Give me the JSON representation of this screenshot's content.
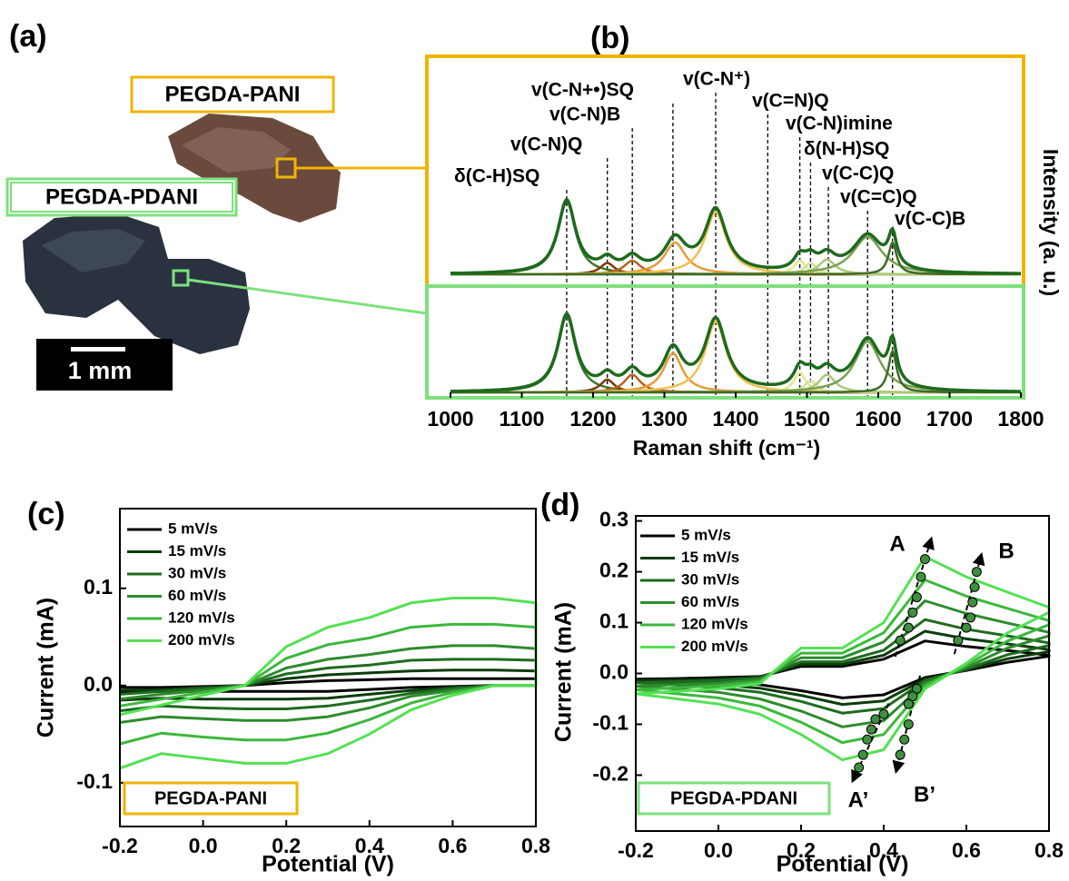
{
  "panel_labels": [
    "(a)",
    "(b)",
    "(c)",
    "(d)"
  ],
  "photo": {
    "sample_labels": [
      "PEGDA-PANI",
      "PEGDA-PDANI"
    ],
    "scale_bar": "1 mm"
  },
  "chart_data": [
    {
      "type": "raman",
      "x_label": "Raman shift (cm⁻¹)",
      "y_label": "Intensity (a. u.)",
      "xlim": [
        1000,
        1800
      ],
      "xticks": [
        1000,
        1100,
        1200,
        1300,
        1400,
        1500,
        1600,
        1700,
        1800
      ],
      "ylim": [
        0,
        1
      ],
      "annotations": [
        {
          "label": "δ(C-H)SQ",
          "x": 1163
        },
        {
          "label": "v(C-N)Q",
          "x": 1220
        },
        {
          "label": "v(C-N+•)SQ",
          "x": 1312
        },
        {
          "label": "v(C-N)B",
          "x": 1255
        },
        {
          "label": "v(C-N⁺)",
          "x": 1372
        },
        {
          "label": "v(C=N)Q",
          "x": 1445
        },
        {
          "label": "v(C-N)imine",
          "x": 1490
        },
        {
          "label": "δ(N-H)SQ",
          "x": 1505
        },
        {
          "label": "v(C-C)Q",
          "x": 1530
        },
        {
          "label": "v(C=C)Q",
          "x": 1585
        },
        {
          "label": "v(C-C)B",
          "x": 1620
        }
      ],
      "fit_color": "#1e6a1e",
      "spectra": [
        {
          "frame_color": "#f0b400",
          "peaks": [
            {
              "center": 1163,
              "height": 0.64,
              "width": 15,
              "color": "#3a7a2a"
            },
            {
              "center": 1220,
              "height": 0.1,
              "width": 12,
              "color": "#7a3a10"
            },
            {
              "center": 1255,
              "height": 0.12,
              "width": 14,
              "color": "#b5651d"
            },
            {
              "center": 1315,
              "height": 0.28,
              "width": 18,
              "color": "#e69a3a"
            },
            {
              "center": 1372,
              "height": 0.55,
              "width": 18,
              "color": "#f2c050"
            },
            {
              "center": 1490,
              "height": 0.12,
              "width": 10,
              "color": "#e8e890"
            },
            {
              "center": 1505,
              "height": 0.1,
              "width": 10,
              "color": "#d0e0a0"
            },
            {
              "center": 1528,
              "height": 0.13,
              "width": 14,
              "color": "#a8c878"
            },
            {
              "center": 1585,
              "height": 0.33,
              "width": 25,
              "color": "#7aa050"
            },
            {
              "center": 1620,
              "height": 0.28,
              "width": 7,
              "color": "#3d6b25"
            }
          ]
        },
        {
          "frame_color": "#7ee07e",
          "peaks": [
            {
              "center": 1163,
              "height": 0.78,
              "width": 15,
              "color": "#3a7a2a"
            },
            {
              "center": 1220,
              "height": 0.13,
              "width": 12,
              "color": "#7a3a10"
            },
            {
              "center": 1255,
              "height": 0.18,
              "width": 14,
              "color": "#b5651d"
            },
            {
              "center": 1312,
              "height": 0.4,
              "width": 16,
              "color": "#e69a3a"
            },
            {
              "center": 1372,
              "height": 0.72,
              "width": 18,
              "color": "#f2c050"
            },
            {
              "center": 1490,
              "height": 0.2,
              "width": 10,
              "color": "#e8e890"
            },
            {
              "center": 1505,
              "height": 0.12,
              "width": 10,
              "color": "#d0e0a0"
            },
            {
              "center": 1528,
              "height": 0.18,
              "width": 14,
              "color": "#a8c878"
            },
            {
              "center": 1585,
              "height": 0.52,
              "width": 22,
              "color": "#7aa050"
            },
            {
              "center": 1620,
              "height": 0.42,
              "width": 7,
              "color": "#3d6b25"
            }
          ]
        }
      ]
    },
    {
      "type": "cv",
      "x_label": "Potential (V)",
      "y_label": "Current (mA)",
      "sample": "PEGDA-PANI",
      "sample_color": "#f0b400",
      "xlim": [
        -0.2,
        0.8
      ],
      "xticks": [
        -0.2,
        {
          "value": 0,
          "label": "0.0"
        },
        0.2,
        0.4,
        0.6,
        0.8
      ],
      "ylim": [
        -0.145,
        0.182
      ],
      "yticks": [
        -0.1,
        {
          "value": 0,
          "label": "0.0"
        },
        0.1
      ],
      "legend": "upper left",
      "x": [
        -0.2,
        -0.1,
        0,
        0.1,
        0.2,
        0.3,
        0.4,
        0.5,
        0.6,
        0.7,
        0.8,
        0.8,
        0.7,
        0.6,
        0.5,
        0.4,
        0.3,
        0.2,
        0.1,
        0,
        -0.1,
        -0.2
      ],
      "series": [
        {
          "name": "5 mV/s",
          "color": "#000000",
          "values": [
            -0.002,
            -0.002,
            -0.001,
            0.0,
            0.003,
            0.005,
            0.006,
            0.007,
            0.007,
            0.007,
            0.007,
            0.0,
            0.0,
            -0.001,
            -0.002,
            -0.004,
            -0.006,
            -0.006,
            -0.006,
            -0.006,
            -0.006,
            -0.007
          ]
        },
        {
          "name": "15 mV/s",
          "color": "#0b3d0b",
          "values": [
            -0.005,
            -0.004,
            -0.002,
            0.0,
            0.007,
            0.011,
            0.013,
            0.015,
            0.016,
            0.016,
            0.015,
            0.0,
            0.0,
            -0.002,
            -0.005,
            -0.009,
            -0.013,
            -0.014,
            -0.014,
            -0.014,
            -0.013,
            -0.015
          ]
        },
        {
          "name": "30 mV/s",
          "color": "#1f6b1f",
          "values": [
            -0.009,
            -0.006,
            -0.003,
            0.0,
            0.012,
            0.018,
            0.021,
            0.026,
            0.027,
            0.027,
            0.026,
            0.0,
            0.0,
            -0.003,
            -0.008,
            -0.015,
            -0.021,
            -0.024,
            -0.024,
            -0.023,
            -0.021,
            -0.026
          ]
        },
        {
          "name": "60 mV/s",
          "color": "#2e8b2e",
          "values": [
            -0.014,
            -0.009,
            -0.005,
            0.0,
            0.018,
            0.027,
            0.032,
            0.038,
            0.041,
            0.041,
            0.038,
            0.0,
            0.0,
            -0.005,
            -0.011,
            -0.023,
            -0.032,
            -0.036,
            -0.036,
            -0.034,
            -0.032,
            -0.038
          ]
        },
        {
          "name": "120 mV/s",
          "color": "#3cb83c",
          "values": [
            -0.021,
            -0.014,
            -0.007,
            0.0,
            0.028,
            0.042,
            0.049,
            0.06,
            0.063,
            0.063,
            0.06,
            0.0,
            0.0,
            -0.007,
            -0.018,
            -0.035,
            -0.049,
            -0.056,
            -0.056,
            -0.053,
            -0.049,
            -0.06
          ]
        },
        {
          "name": "200 mV/s",
          "color": "#55e055",
          "values": [
            -0.03,
            -0.02,
            -0.01,
            0.0,
            0.04,
            0.06,
            0.07,
            0.085,
            0.09,
            0.09,
            0.085,
            0.0,
            0.0,
            -0.01,
            -0.025,
            -0.05,
            -0.07,
            -0.08,
            -0.08,
            -0.075,
            -0.07,
            -0.085
          ]
        }
      ]
    },
    {
      "type": "cv",
      "x_label": "Potential (V)",
      "y_label": "Current (mA)",
      "sample": "PEGDA-PDANI",
      "sample_color": "#7ee07e",
      "xlim": [
        -0.2,
        0.8
      ],
      "xticks": [
        -0.2,
        {
          "value": 0,
          "label": "0.0"
        },
        0.2,
        0.4,
        0.6,
        0.8
      ],
      "ylim": [
        -0.31,
        0.31
      ],
      "yticks": [
        -0.2,
        -0.1,
        {
          "value": 0,
          "label": "0.0"
        },
        0.1,
        0.2,
        0.3
      ],
      "legend": "upper left",
      "x": [
        -0.2,
        -0.1,
        0,
        0.1,
        0.2,
        0.3,
        0.4,
        0.5,
        0.6,
        0.7,
        0.8,
        0.8,
        0.7,
        0.6,
        0.5,
        0.4,
        0.3,
        0.2,
        0.1,
        0,
        -0.1,
        -0.2
      ],
      "series": [
        {
          "name": "5 mV/s",
          "color": "#000000",
          "values": [
            -0.011,
            -0.01,
            -0.008,
            -0.006,
            0.014,
            0.014,
            0.028,
            0.064,
            0.053,
            0.045,
            0.036,
            0.034,
            0.022,
            0.006,
            -0.008,
            -0.042,
            -0.048,
            -0.034,
            -0.022,
            -0.017,
            -0.014,
            -0.011
          ]
        },
        {
          "name": "15 mV/s",
          "color": "#0b3d0b",
          "values": [
            -0.014,
            -0.013,
            -0.011,
            -0.007,
            0.018,
            0.018,
            0.036,
            0.083,
            0.068,
            0.058,
            0.047,
            0.043,
            0.029,
            0.007,
            -0.011,
            -0.054,
            -0.061,
            -0.043,
            -0.029,
            -0.022,
            -0.018,
            -0.014
          ]
        },
        {
          "name": "30 mV/s",
          "color": "#1f6b1f",
          "values": [
            -0.018,
            -0.016,
            -0.014,
            -0.009,
            0.023,
            0.023,
            0.046,
            0.106,
            0.087,
            0.074,
            0.06,
            0.055,
            0.037,
            0.009,
            -0.014,
            -0.069,
            -0.078,
            -0.055,
            -0.037,
            -0.028,
            -0.023,
            -0.018
          ]
        },
        {
          "name": "60 mV/s",
          "color": "#2e8b2e",
          "values": [
            -0.025,
            -0.022,
            -0.019,
            -0.012,
            0.031,
            0.031,
            0.062,
            0.143,
            0.118,
            0.099,
            0.081,
            0.074,
            0.05,
            0.012,
            -0.019,
            -0.093,
            -0.105,
            -0.074,
            -0.05,
            -0.037,
            -0.031,
            -0.025
          ]
        },
        {
          "name": "120 mV/s",
          "color": "#3cb83c",
          "values": [
            -0.032,
            -0.028,
            -0.024,
            -0.016,
            0.04,
            0.04,
            0.08,
            0.184,
            0.152,
            0.128,
            0.104,
            0.096,
            0.064,
            0.016,
            -0.024,
            -0.12,
            -0.136,
            -0.096,
            -0.064,
            -0.048,
            -0.04,
            -0.032
          ]
        },
        {
          "name": "200 mV/s",
          "color": "#55e055",
          "values": [
            -0.04,
            -0.035,
            -0.03,
            -0.02,
            0.05,
            0.05,
            0.1,
            0.23,
            0.19,
            0.16,
            0.13,
            0.12,
            0.08,
            0.02,
            -0.03,
            -0.15,
            -0.17,
            -0.12,
            -0.08,
            -0.06,
            -0.05,
            -0.04
          ]
        }
      ],
      "markers": [
        {
          "label": "A",
          "x": [
            0.44,
            0.46,
            0.47,
            0.48,
            0.49,
            0.5
          ],
          "y": [
            0.065,
            0.09,
            0.12,
            0.15,
            0.19,
            0.225
          ]
        },
        {
          "label": "B",
          "x": [
            0.58,
            0.6,
            0.61,
            0.615,
            0.62,
            0.625
          ],
          "y": [
            0.065,
            0.09,
            0.11,
            0.14,
            0.17,
            0.2
          ]
        },
        {
          "label": "A’",
          "x": [
            0.4,
            0.38,
            0.37,
            0.36,
            0.35,
            0.34
          ],
          "y": [
            -0.08,
            -0.09,
            -0.11,
            -0.13,
            -0.16,
            -0.185
          ]
        },
        {
          "label": "B’",
          "x": [
            0.48,
            0.47,
            0.46,
            0.46,
            0.45,
            0.44
          ],
          "y": [
            -0.03,
            -0.045,
            -0.06,
            -0.1,
            -0.13,
            -0.16
          ]
        }
      ]
    }
  ]
}
